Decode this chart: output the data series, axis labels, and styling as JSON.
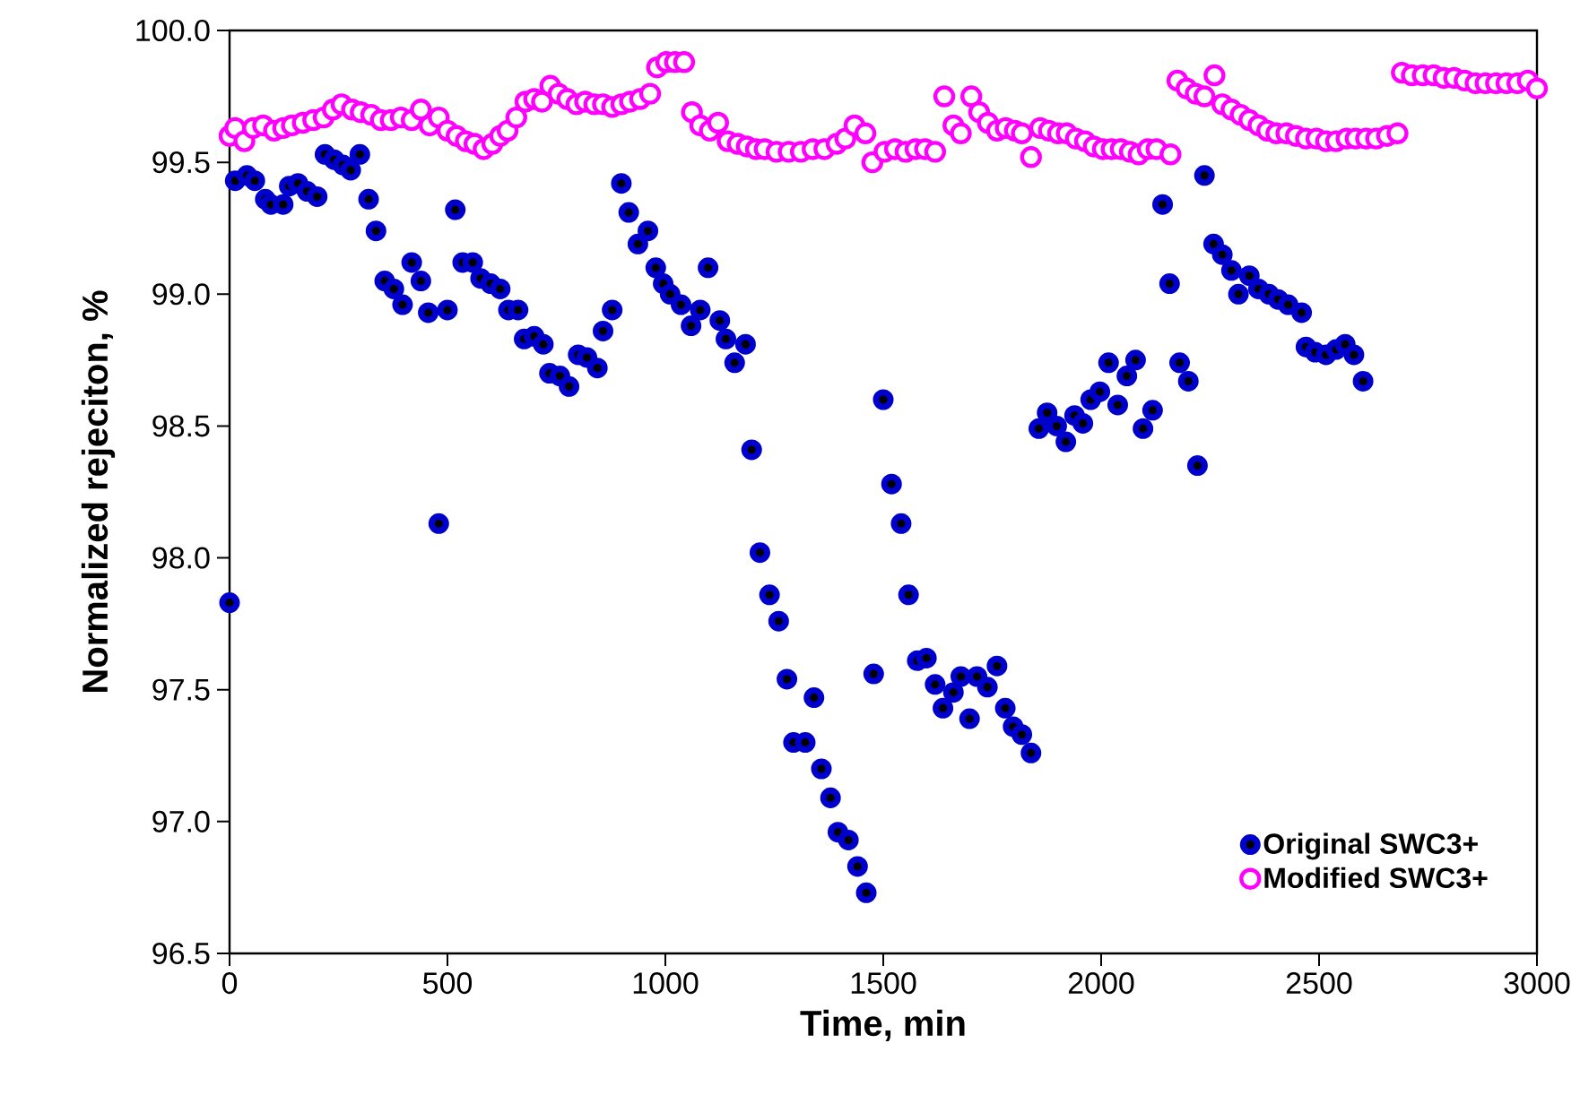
{
  "chart_data": {
    "type": "scatter",
    "xlabel": "Time, min",
    "ylabel": "Normalized rejeciton, %",
    "xlim": [
      0,
      3000
    ],
    "ylim": [
      96.5,
      100
    ],
    "xticks": [
      0,
      500,
      1000,
      1500,
      2000,
      2500,
      3000
    ],
    "yticks": [
      {
        "value": 96.5,
        "label": "96.5"
      },
      {
        "value": 97,
        "label": "97.0"
      },
      {
        "value": 97.5,
        "label": "97.5"
      },
      {
        "value": 98,
        "label": "98.0"
      },
      {
        "value": 98.5,
        "label": "98.5"
      },
      {
        "value": 99,
        "label": "99.0"
      },
      {
        "value": 99.5,
        "label": "99.5"
      },
      {
        "value": 100,
        "label": "100.0"
      }
    ],
    "marker": "circle",
    "legend": "bottom right",
    "grid": false,
    "series": [
      {
        "name": "Original SWC3+",
        "color": "#0000cc",
        "x": [
          0,
          13,
          40,
          58,
          82,
          95,
          123,
          137,
          157,
          178,
          201,
          219,
          240,
          260,
          278,
          299,
          319,
          336,
          356,
          377,
          397,
          418,
          439,
          456,
          480,
          500,
          518,
          535,
          558,
          576,
          599,
          621,
          640,
          662,
          676,
          699,
          720,
          734,
          758,
          779,
          800,
          820,
          844,
          857,
          878,
          899,
          916,
          937,
          960,
          978,
          995,
          1011,
          1036,
          1059,
          1080,
          1098,
          1125,
          1139,
          1159,
          1184,
          1198,
          1217,
          1239,
          1260,
          1279,
          1294,
          1321,
          1341,
          1358,
          1379,
          1396,
          1420,
          1441,
          1461,
          1478,
          1500,
          1519,
          1541,
          1558,
          1578,
          1599,
          1619,
          1637,
          1661,
          1678,
          1698,
          1715,
          1739,
          1761,
          1780,
          1798,
          1818,
          1839,
          1857,
          1876,
          1898,
          1919,
          1939,
          1958,
          1976,
          1997,
          2017,
          2038,
          2059,
          2079,
          2096,
          2118,
          2141,
          2157,
          2180,
          2200,
          2221,
          2237,
          2258,
          2278,
          2299,
          2315,
          2340,
          2361,
          2385,
          2406,
          2429,
          2460,
          2470,
          2491,
          2516,
          2539,
          2560,
          2580,
          2601
        ],
        "values": [
          97.83,
          99.43,
          99.45,
          99.43,
          99.36,
          99.34,
          99.34,
          99.41,
          99.42,
          99.39,
          99.37,
          99.53,
          99.51,
          99.49,
          99.47,
          99.53,
          99.36,
          99.24,
          99.05,
          99.02,
          98.96,
          99.12,
          99.05,
          98.93,
          98.13,
          98.94,
          99.32,
          99.12,
          99.12,
          99.06,
          99.04,
          99.02,
          98.94,
          98.94,
          98.83,
          98.84,
          98.81,
          98.7,
          98.69,
          98.65,
          98.77,
          98.76,
          98.72,
          98.86,
          98.94,
          99.42,
          99.31,
          99.19,
          99.24,
          99.1,
          99.04,
          99.0,
          98.96,
          98.88,
          98.94,
          99.1,
          98.9,
          98.83,
          98.74,
          98.81,
          98.41,
          98.02,
          97.86,
          97.76,
          97.54,
          97.3,
          97.3,
          97.47,
          97.2,
          97.09,
          96.96,
          96.93,
          96.83,
          96.73,
          97.56,
          98.6,
          98.28,
          98.13,
          97.86,
          97.61,
          97.62,
          97.52,
          97.43,
          97.49,
          97.55,
          97.39,
          97.55,
          97.51,
          97.59,
          97.43,
          97.36,
          97.33,
          97.26,
          98.49,
          98.55,
          98.5,
          98.44,
          98.54,
          98.51,
          98.6,
          98.63,
          98.74,
          98.58,
          98.69,
          98.75,
          98.49,
          98.56,
          99.34,
          99.04,
          98.74,
          98.67,
          98.35,
          99.45,
          99.19,
          99.15,
          99.09,
          99.0,
          99.07,
          99.02,
          99.0,
          98.98,
          98.96,
          98.93,
          98.8,
          98.78,
          98.77,
          98.79,
          98.81,
          98.77,
          98.67
        ]
      },
      {
        "name": "Modified SWC3+",
        "color": "#ff00ff",
        "x": [
          0,
          13,
          34,
          54,
          77,
          102,
          123,
          143,
          168,
          192,
          216,
          237,
          257,
          281,
          301,
          325,
          347,
          370,
          393,
          418,
          439,
          459,
          480,
          500,
          521,
          542,
          562,
          583,
          603,
          621,
          638,
          658,
          679,
          699,
          717,
          736,
          755,
          775,
          796,
          816,
          837,
          857,
          878,
          899,
          919,
          942,
          965,
          981,
          1002,
          1022,
          1043,
          1061,
          1080,
          1102,
          1121,
          1143,
          1166,
          1187,
          1208,
          1228,
          1255,
          1283,
          1311,
          1338,
          1365,
          1393,
          1413,
          1434,
          1459,
          1475,
          1503,
          1527,
          1551,
          1574,
          1596,
          1619,
          1640,
          1661,
          1678,
          1702,
          1720,
          1740,
          1761,
          1781,
          1802,
          1818,
          1839,
          1860,
          1880,
          1901,
          1921,
          1942,
          1963,
          1983,
          2004,
          2024,
          2045,
          2066,
          2086,
          2107,
          2127,
          2159,
          2175,
          2196,
          2217,
          2237,
          2260,
          2278,
          2299,
          2320,
          2340,
          2361,
          2381,
          2402,
          2425,
          2447,
          2470,
          2494,
          2516,
          2539,
          2563,
          2584,
          2608,
          2631,
          2656,
          2680,
          2690,
          2713,
          2738,
          2763,
          2786,
          2810,
          2834,
          2859,
          2882,
          2906,
          2930,
          2955,
          2979,
          3000
        ],
        "values": [
          99.6,
          99.63,
          99.58,
          99.63,
          99.64,
          99.62,
          99.63,
          99.64,
          99.65,
          99.66,
          99.67,
          99.7,
          99.72,
          99.7,
          99.69,
          99.68,
          99.66,
          99.66,
          99.67,
          99.66,
          99.7,
          99.64,
          99.67,
          99.62,
          99.6,
          99.58,
          99.57,
          99.55,
          99.57,
          99.6,
          99.62,
          99.67,
          99.73,
          99.74,
          99.73,
          99.79,
          99.76,
          99.74,
          99.72,
          99.73,
          99.72,
          99.72,
          99.71,
          99.72,
          99.73,
          99.74,
          99.76,
          99.86,
          99.88,
          99.88,
          99.88,
          99.69,
          99.64,
          99.62,
          99.65,
          99.58,
          99.57,
          99.56,
          99.55,
          99.55,
          99.54,
          99.54,
          99.54,
          99.55,
          99.55,
          99.57,
          99.59,
          99.64,
          99.61,
          99.5,
          99.54,
          99.55,
          99.54,
          99.55,
          99.55,
          99.54,
          99.75,
          99.64,
          99.61,
          99.75,
          99.69,
          99.65,
          99.62,
          99.63,
          99.62,
          99.61,
          99.52,
          99.63,
          99.62,
          99.61,
          99.61,
          99.59,
          99.58,
          99.56,
          99.55,
          99.55,
          99.55,
          99.54,
          99.53,
          99.55,
          99.55,
          99.53,
          99.81,
          99.78,
          99.76,
          99.75,
          99.83,
          99.72,
          99.7,
          99.68,
          99.66,
          99.64,
          99.62,
          99.61,
          99.61,
          99.6,
          99.59,
          99.59,
          99.58,
          99.58,
          99.59,
          99.59,
          99.59,
          99.59,
          99.6,
          99.61,
          99.84,
          99.83,
          99.83,
          99.83,
          99.82,
          99.82,
          99.81,
          99.8,
          99.8,
          99.8,
          99.8,
          99.8,
          99.81,
          99.78
        ]
      }
    ]
  }
}
